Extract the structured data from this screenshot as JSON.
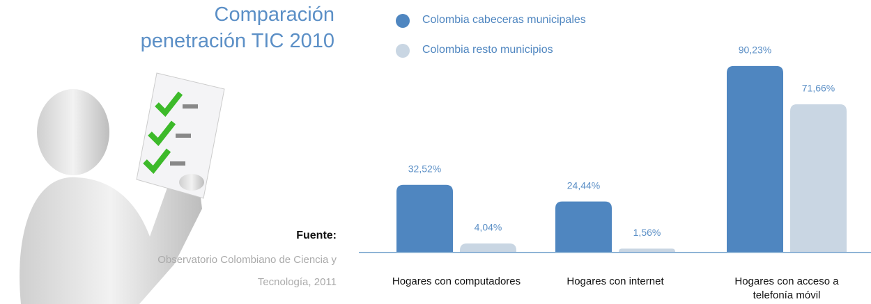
{
  "chart_data": {
    "type": "bar",
    "title": "Comparación penetración TIC 2010",
    "source_label": "Fuente:",
    "source": "Observatorio Colombiano de Ciencia y Tecnología, 2011",
    "categories": [
      "Hogares con computadores",
      "Hogares con internet",
      "Hogares con acceso a telefonía móvil"
    ],
    "series": [
      {
        "name": "Colombia cabeceras municipales",
        "color": "#4f86c0",
        "values": [
          32.52,
          24.44,
          90.23
        ],
        "value_labels": [
          "32,52%",
          "24,44%",
          "90,23%"
        ]
      },
      {
        "name": "Colombia resto municipios",
        "color": "#c9d6e3",
        "values": [
          4.04,
          1.56,
          71.66
        ],
        "value_labels": [
          "4,04%",
          "1,56%",
          "71,66%"
        ]
      }
    ],
    "ylim": [
      0,
      100
    ]
  }
}
